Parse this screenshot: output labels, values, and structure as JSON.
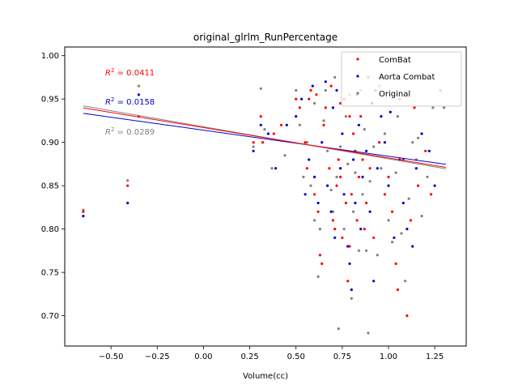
{
  "chart_data": {
    "type": "scatter",
    "title": "original_glrlm_RunPercentage",
    "xlabel": "Volume(cc)",
    "ylabel": "",
    "xlim": [
      -0.75,
      1.42
    ],
    "ylim": [
      0.665,
      1.01
    ],
    "xticks": [
      -0.5,
      -0.25,
      0.0,
      0.25,
      0.5,
      0.75,
      1.0,
      1.25
    ],
    "xtick_labels": [
      "−0.50",
      "−0.25",
      "0.00",
      "0.25",
      "0.50",
      "0.75",
      "1.00",
      "1.25"
    ],
    "yticks": [
      0.7,
      0.75,
      0.8,
      0.85,
      0.9,
      0.95,
      1.0
    ],
    "ytick_labels": [
      "0.70",
      "0.75",
      "0.80",
      "0.85",
      "0.90",
      "0.95",
      "1.00"
    ],
    "legend_position": "top-right",
    "series": [
      {
        "name": "ComBat",
        "color": "#ff0000",
        "fit": {
          "slope": -0.035,
          "intercept": 0.917,
          "r2_label": "0.0411"
        },
        "points": [
          [
            -0.65,
            0.82
          ],
          [
            -0.41,
            0.85
          ],
          [
            -0.35,
            0.93
          ],
          [
            0.27,
            0.9
          ],
          [
            0.31,
            0.93
          ],
          [
            0.32,
            0.9
          ],
          [
            0.38,
            0.91
          ],
          [
            0.42,
            0.92
          ],
          [
            0.5,
            0.95
          ],
          [
            0.52,
            0.94
          ],
          [
            0.55,
            0.9
          ],
          [
            0.56,
            0.87
          ],
          [
            0.58,
            0.96
          ],
          [
            0.6,
            0.84
          ],
          [
            0.62,
            0.82
          ],
          [
            0.63,
            0.77
          ],
          [
            0.64,
            0.76
          ],
          [
            0.65,
            0.92
          ],
          [
            0.66,
            0.94
          ],
          [
            0.68,
            0.87
          ],
          [
            0.7,
            0.81
          ],
          [
            0.71,
            0.8
          ],
          [
            0.72,
            0.85
          ],
          [
            0.73,
            0.88
          ],
          [
            0.74,
            0.86
          ],
          [
            0.75,
            0.79
          ],
          [
            0.76,
            0.95
          ],
          [
            0.77,
            0.83
          ],
          [
            0.78,
            0.74
          ],
          [
            0.79,
            0.78
          ],
          [
            0.8,
            0.84
          ],
          [
            0.81,
            0.91
          ],
          [
            0.82,
            0.89
          ],
          [
            0.83,
            0.81
          ],
          [
            0.84,
            0.86
          ],
          [
            0.85,
            0.93
          ],
          [
            0.86,
            0.88
          ],
          [
            0.87,
            0.8
          ],
          [
            0.88,
            0.83
          ],
          [
            0.9,
            0.87
          ],
          [
            0.92,
            0.79
          ],
          [
            0.95,
            0.9
          ],
          [
            0.98,
            0.84
          ],
          [
            1.0,
            0.86
          ],
          [
            1.02,
            0.82
          ],
          [
            1.04,
            0.76
          ],
          [
            1.05,
            0.73
          ],
          [
            1.08,
            0.88
          ],
          [
            1.1,
            0.7
          ],
          [
            1.12,
            0.81
          ],
          [
            1.14,
            0.94
          ],
          [
            1.16,
            0.85
          ],
          [
            1.2,
            0.89
          ],
          [
            1.23,
            0.84
          ],
          [
            1.28,
            0.96
          ],
          [
            0.57,
            0.95
          ],
          [
            0.61,
            0.955
          ],
          [
            0.69,
            0.965
          ],
          [
            0.74,
            0.945
          ],
          [
            0.79,
            0.93
          ],
          [
            0.89,
            0.975
          ],
          [
            0.93,
            0.96
          ],
          [
            1.06,
            0.95
          ]
        ]
      },
      {
        "name": "Aorta Combat",
        "color": "#0000cc",
        "fit": {
          "slope": -0.03,
          "intercept": 0.914,
          "r2_label": "0.0158"
        },
        "points": [
          [
            -0.65,
            0.815
          ],
          [
            -0.41,
            0.83
          ],
          [
            -0.35,
            0.955
          ],
          [
            0.27,
            0.89
          ],
          [
            0.31,
            0.92
          ],
          [
            0.35,
            0.91
          ],
          [
            0.39,
            0.87
          ],
          [
            0.45,
            0.92
          ],
          [
            0.5,
            0.93
          ],
          [
            0.53,
            0.95
          ],
          [
            0.55,
            0.84
          ],
          [
            0.57,
            0.88
          ],
          [
            0.6,
            0.86
          ],
          [
            0.62,
            0.83
          ],
          [
            0.64,
            0.9
          ],
          [
            0.66,
            0.97
          ],
          [
            0.67,
            0.85
          ],
          [
            0.69,
            0.82
          ],
          [
            0.71,
            0.79
          ],
          [
            0.72,
            0.96
          ],
          [
            0.74,
            0.87
          ],
          [
            0.75,
            0.91
          ],
          [
            0.76,
            0.84
          ],
          [
            0.78,
            0.78
          ],
          [
            0.79,
            0.76
          ],
          [
            0.8,
            0.73
          ],
          [
            0.81,
            0.88
          ],
          [
            0.82,
            0.83
          ],
          [
            0.84,
            0.92
          ],
          [
            0.85,
            0.8
          ],
          [
            0.86,
            0.86
          ],
          [
            0.88,
            0.89
          ],
          [
            0.9,
            0.82
          ],
          [
            0.92,
            0.74
          ],
          [
            0.94,
            0.87
          ],
          [
            0.96,
            0.93
          ],
          [
            0.98,
            0.9
          ],
          [
            1.0,
            0.85
          ],
          [
            1.03,
            0.79
          ],
          [
            1.06,
            0.88
          ],
          [
            1.08,
            0.83
          ],
          [
            1.1,
            0.8
          ],
          [
            1.13,
            0.78
          ],
          [
            1.15,
            0.87
          ],
          [
            1.18,
            0.91
          ],
          [
            1.22,
            0.89
          ],
          [
            1.25,
            0.85
          ],
          [
            0.59,
            0.965
          ],
          [
            0.7,
            0.94
          ],
          [
            0.83,
            0.955
          ],
          [
            0.91,
            0.945
          ],
          [
            1.01,
            0.935
          ]
        ]
      },
      {
        "name": "Original",
        "color": "#808080",
        "fit": {
          "slope": -0.037,
          "intercept": 0.918,
          "r2_label": "0.0289"
        },
        "points": [
          [
            -0.65,
            0.822
          ],
          [
            -0.41,
            0.856
          ],
          [
            -0.35,
            0.965
          ],
          [
            0.27,
            0.895
          ],
          [
            0.31,
            0.962
          ],
          [
            0.33,
            0.915
          ],
          [
            0.37,
            0.87
          ],
          [
            0.44,
            0.885
          ],
          [
            0.5,
            0.96
          ],
          [
            0.52,
            0.92
          ],
          [
            0.54,
            0.86
          ],
          [
            0.56,
            0.9
          ],
          [
            0.58,
            0.85
          ],
          [
            0.6,
            0.81
          ],
          [
            0.62,
            0.745
          ],
          [
            0.63,
            0.8
          ],
          [
            0.65,
            0.925
          ],
          [
            0.67,
            0.89
          ],
          [
            0.69,
            0.845
          ],
          [
            0.7,
            0.82
          ],
          [
            0.72,
            0.86
          ],
          [
            0.73,
            0.685
          ],
          [
            0.74,
            0.895
          ],
          [
            0.76,
            0.8
          ],
          [
            0.77,
            0.93
          ],
          [
            0.78,
            0.875
          ],
          [
            0.8,
            0.72
          ],
          [
            0.81,
            0.82
          ],
          [
            0.82,
            0.865
          ],
          [
            0.84,
            0.775
          ],
          [
            0.86,
            0.84
          ],
          [
            0.87,
            0.915
          ],
          [
            0.88,
            0.775
          ],
          [
            0.89,
            0.68
          ],
          [
            0.9,
            0.855
          ],
          [
            0.92,
            0.895
          ],
          [
            0.94,
            0.77
          ],
          [
            0.96,
            0.87
          ],
          [
            0.98,
            0.91
          ],
          [
            1.0,
            0.81
          ],
          [
            1.02,
            0.785
          ],
          [
            1.04,
            0.865
          ],
          [
            1.07,
            0.795
          ],
          [
            1.09,
            0.74
          ],
          [
            1.11,
            0.835
          ],
          [
            1.13,
            0.9
          ],
          [
            1.15,
            0.88
          ],
          [
            1.18,
            0.815
          ],
          [
            1.21,
            0.86
          ],
          [
            1.24,
            0.94
          ],
          [
            1.3,
            0.94
          ],
          [
            0.6,
            0.945
          ],
          [
            0.66,
            0.96
          ],
          [
            0.71,
            0.975
          ],
          [
            0.79,
            0.955
          ],
          [
            0.85,
            0.96
          ],
          [
            0.95,
            0.965
          ],
          [
            1.05,
            0.93
          ],
          [
            1.16,
            0.905
          ]
        ]
      }
    ]
  }
}
